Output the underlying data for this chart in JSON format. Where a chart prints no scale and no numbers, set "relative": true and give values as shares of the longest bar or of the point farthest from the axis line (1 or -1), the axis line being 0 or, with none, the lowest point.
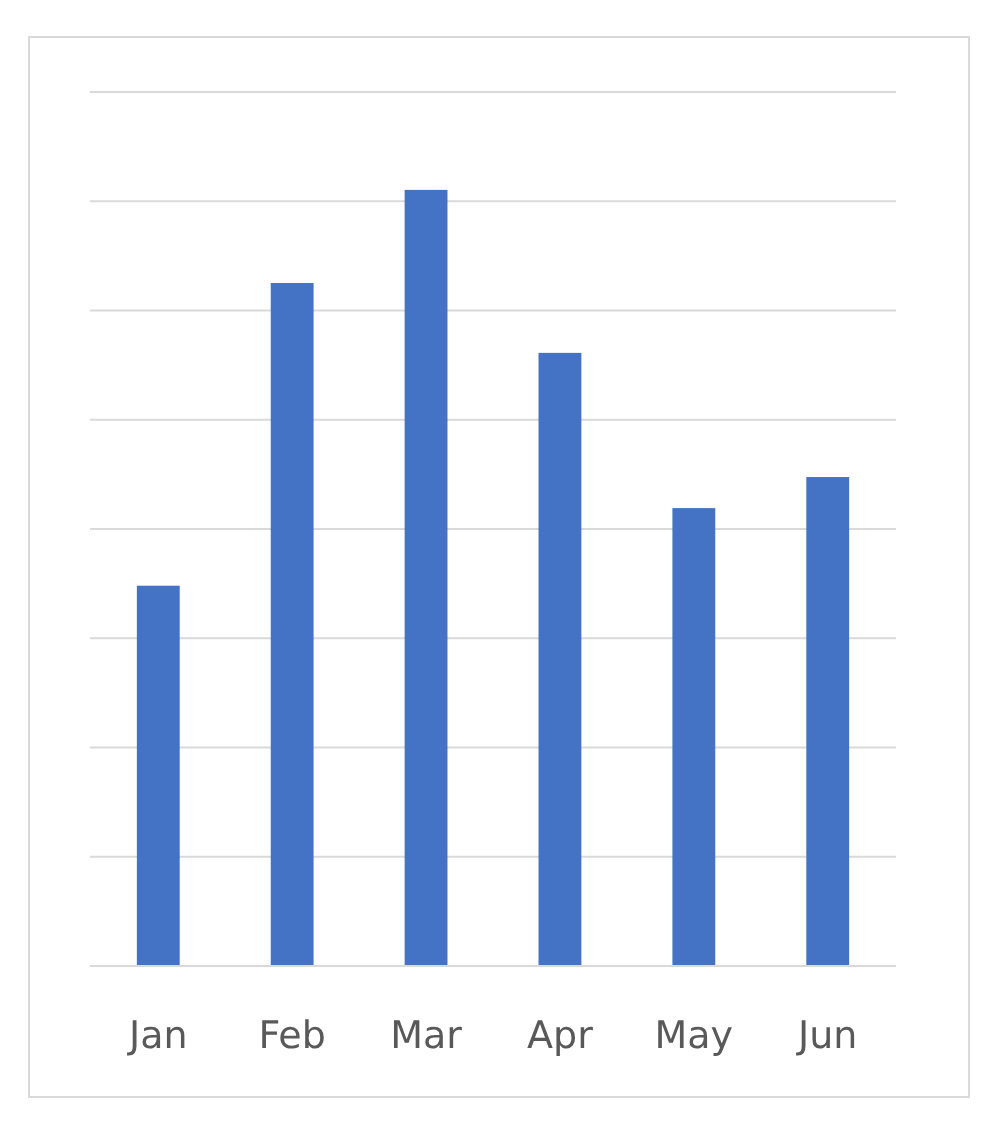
{
  "chart_data": {
    "type": "bar",
    "relative": true,
    "categories": [
      "Jan",
      "Feb",
      "Mar",
      "Apr",
      "May",
      "Jun"
    ],
    "values": [
      0.49,
      0.88,
      1,
      0.79,
      0.59,
      0.63
    ],
    "color": "#4472c4",
    "grid": "y"
  }
}
